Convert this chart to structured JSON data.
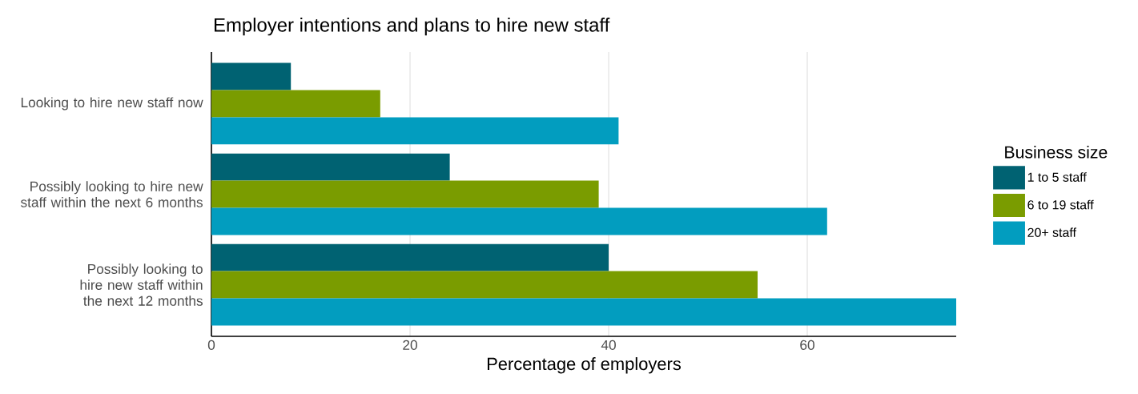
{
  "chart_data": {
    "type": "bar",
    "orientation": "horizontal",
    "title": "Employer intentions and plans to hire new staff",
    "xlabel": "Percentage of employers",
    "legend_title": "Business size",
    "categories": [
      "Looking to hire new staff now",
      "Possibly looking to hire new staff within the next 6 months",
      "Possibly looking to hire new staff within the next 12 months"
    ],
    "series": [
      {
        "name": "1 to 5 staff",
        "color": "#006272",
        "values": [
          8,
          24,
          40
        ]
      },
      {
        "name": "6 to 19 staff",
        "color": "#7a9c00",
        "values": [
          17,
          39,
          55
        ]
      },
      {
        "name": "20+ staff",
        "color": "#029dbf",
        "values": [
          41,
          62,
          75
        ]
      }
    ],
    "xlim": [
      0,
      75
    ],
    "xticks": [
      0,
      20,
      40,
      60
    ],
    "grid": "x",
    "legend": "right"
  }
}
